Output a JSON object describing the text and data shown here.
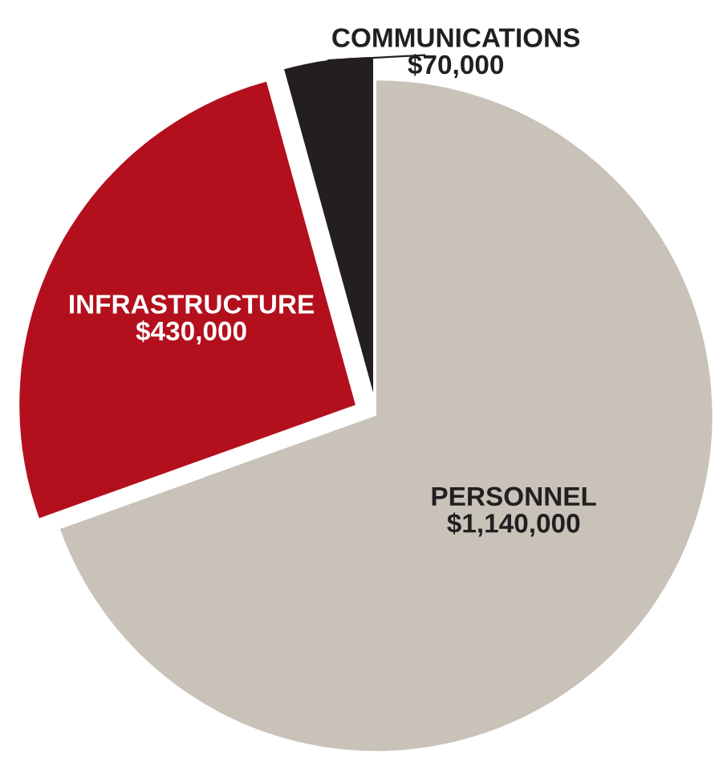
{
  "chart_data": {
    "type": "pie",
    "categories": [
      "PERSONNEL",
      "INFRASTRUCTURE",
      "COMMUNICATIONS"
    ],
    "values": [
      1140000,
      430000,
      70000
    ],
    "value_labels": [
      "$1,140,000",
      "$430,000",
      "$70,000"
    ],
    "colors": [
      "#c8c2b8",
      "#b30f1d",
      "#231f20"
    ]
  }
}
